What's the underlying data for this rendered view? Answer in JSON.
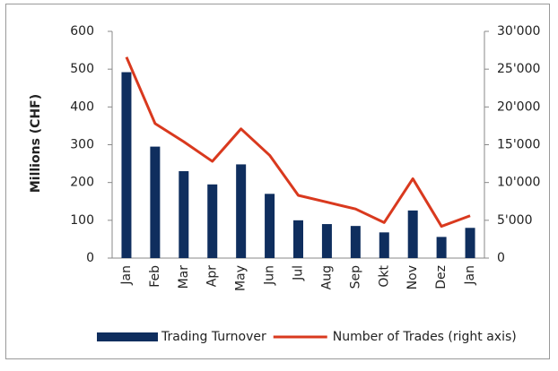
{
  "chart_data": {
    "type": "bar",
    "y_label": "Millions (CHF)",
    "categories": [
      "Jan",
      "Feb",
      "Mar",
      "Apr",
      "May",
      "Jun",
      "Jul",
      "Aug",
      "Sep",
      "Okt",
      "Nov",
      "Dez",
      "Jan"
    ],
    "series": [
      {
        "name": "Trading Turnover",
        "type": "bar",
        "color": "#0f2e5e",
        "values": [
          492,
          295,
          230,
          195,
          248,
          170,
          100,
          90,
          85,
          68,
          126,
          56,
          80
        ]
      },
      {
        "name": "Number of Trades (right axis)",
        "type": "line",
        "axis": "y2",
        "color": "#d9391e",
        "values": [
          26600,
          17800,
          15400,
          12800,
          17100,
          13600,
          8300,
          7400,
          6500,
          4700,
          10500,
          4200,
          5600
        ]
      }
    ],
    "ylim": [
      0,
      600
    ],
    "yticks": [
      0,
      100,
      200,
      300,
      400,
      500,
      600
    ],
    "y2lim": [
      0,
      30000
    ],
    "y2ticks": [
      0,
      {
        "value": 5000,
        "label": "5'000"
      },
      {
        "value": 10000,
        "label": "10'000"
      },
      {
        "value": 15000,
        "label": "15'000"
      },
      {
        "value": 20000,
        "label": "20'000"
      },
      {
        "value": 25000,
        "label": "25'000"
      },
      {
        "value": 30000,
        "label": "30'000"
      }
    ],
    "legend": "bottom"
  }
}
